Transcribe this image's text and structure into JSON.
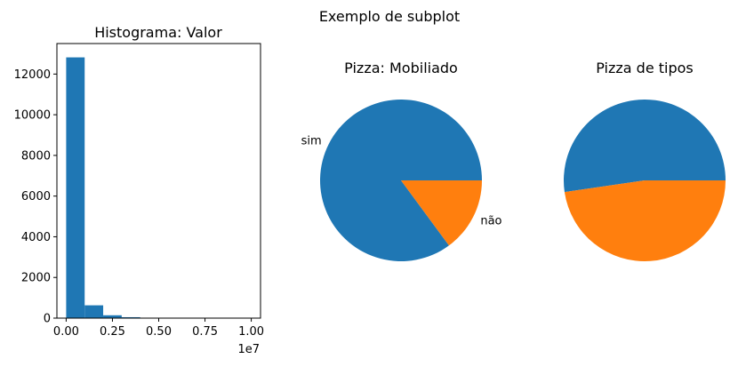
{
  "figure": {
    "suptitle": "Exemplo de subplot"
  },
  "colors": {
    "blue": "#1f77b4",
    "orange": "#ff7f0e"
  },
  "chart_data": [
    {
      "type": "bar",
      "title": "Histograma: Valor",
      "xlabel": "",
      "ylabel": "",
      "x_offset_label": "1e7",
      "xlim": [
        -0.05,
        1.05
      ],
      "ylim": [
        0,
        13500
      ],
      "x_ticks": [
        0.0,
        0.25,
        0.5,
        0.75,
        1.0
      ],
      "x_tick_labels": [
        "0.00",
        "0.25",
        "0.50",
        "0.75",
        "1.00"
      ],
      "y_ticks": [
        0,
        2000,
        4000,
        6000,
        8000,
        10000,
        12000
      ],
      "y_tick_labels": [
        "0",
        "2000",
        "4000",
        "6000",
        "8000",
        "10000",
        "12000"
      ],
      "bin_edges": [
        0.0,
        0.1,
        0.2,
        0.3,
        0.4,
        0.5,
        0.6,
        0.7,
        0.8,
        0.9,
        1.0
      ],
      "values": [
        12820,
        630,
        140,
        45,
        15,
        6,
        3,
        2,
        1,
        1
      ]
    },
    {
      "type": "pie",
      "title": "Pizza: Mobiliado",
      "labels": [
        "sim",
        "não"
      ],
      "values": [
        85.1,
        14.9
      ]
    },
    {
      "type": "pie",
      "title": "Pizza de tipos",
      "labels": [
        "",
        ""
      ],
      "values": [
        52.3,
        47.7
      ]
    }
  ]
}
